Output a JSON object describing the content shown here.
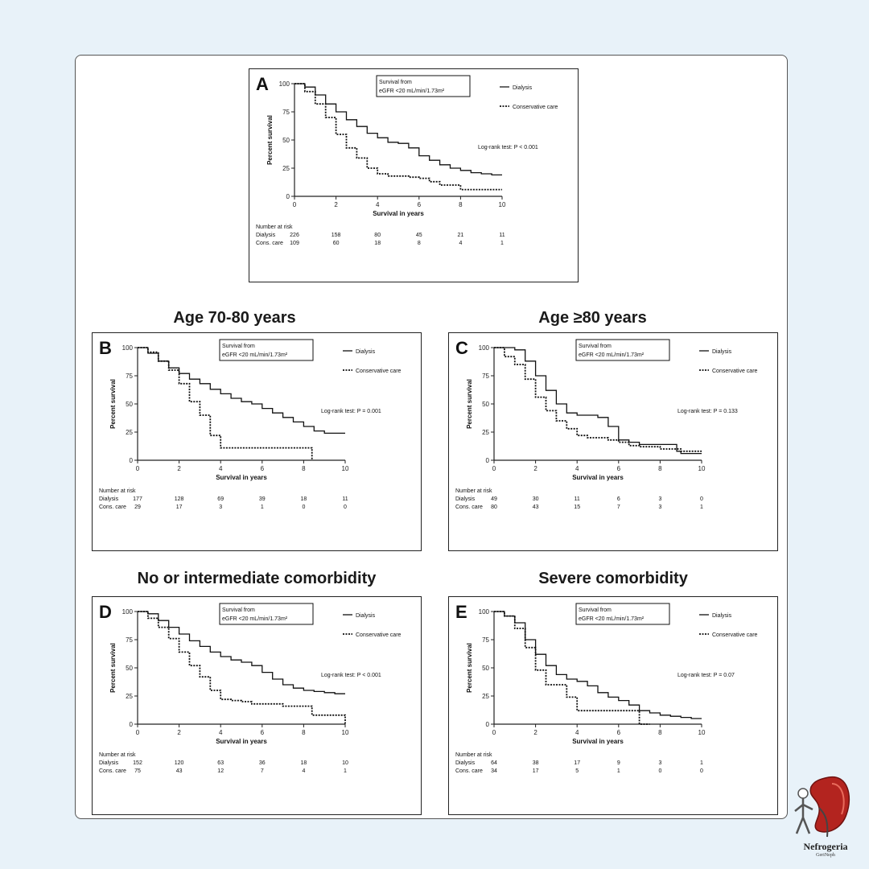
{
  "titles": {
    "age_70_80": "Age 70-80 years",
    "age_80": "Age ≥80 years",
    "no_comorbidity": "No or intermediate comorbidity",
    "severe_comorbidity": "Severe comorbidity"
  },
  "brand": {
    "name": "Nefrogeria",
    "sub": "GeriNeph"
  },
  "chart_data": [
    {
      "panel": "A",
      "type": "line",
      "ylabel": "Percent survival",
      "xlabel": "Survival in years",
      "xlim": [
        0,
        10
      ],
      "ylim": [
        0,
        100
      ],
      "xticks": [
        "0",
        "2",
        "4",
        "6",
        "8",
        "10"
      ],
      "yticks": [
        "0",
        "25",
        "50",
        "75",
        "100"
      ],
      "box_lines": [
        "Survival from",
        "eGFR <20 mL/min/1.73m²"
      ],
      "pvalue": "Log-rank test: P < 0.001",
      "series": [
        {
          "name": "Dialysis",
          "style": "solid",
          "x": [
            0,
            0.5,
            1,
            1.5,
            2,
            2.5,
            3,
            3.5,
            4,
            4.5,
            5,
            5.5,
            6,
            6.5,
            7,
            7.5,
            8,
            8.5,
            9,
            9.5,
            10
          ],
          "y": [
            100,
            97,
            90,
            82,
            75,
            68,
            62,
            56,
            52,
            48,
            47,
            43,
            36,
            32,
            28,
            25,
            23,
            21,
            20,
            19,
            19
          ]
        },
        {
          "name": "Conservative care",
          "style": "dashed",
          "x": [
            0,
            0.5,
            1,
            1.5,
            2,
            2.5,
            3,
            3.5,
            4,
            4.5,
            5,
            5.5,
            6,
            6.5,
            7,
            7.5,
            8,
            8.5,
            9,
            9.5,
            10
          ],
          "y": [
            100,
            93,
            82,
            70,
            55,
            43,
            34,
            25,
            20,
            18,
            18,
            17,
            16,
            13,
            10,
            10,
            6,
            6,
            6,
            6,
            6
          ]
        }
      ],
      "risk_header": "Number at risk",
      "risk_rows": [
        {
          "label": "Dialysis",
          "values": [
            "226",
            "158",
            "80",
            "45",
            "21",
            "11"
          ]
        },
        {
          "label": "Cons. care",
          "values": [
            "109",
            "60",
            "18",
            "8",
            "4",
            "1"
          ]
        }
      ]
    },
    {
      "panel": "B",
      "type": "line",
      "ylabel": "Percent survival",
      "xlabel": "Survival in years",
      "xlim": [
        0,
        10
      ],
      "ylim": [
        0,
        100
      ],
      "xticks": [
        "0",
        "2",
        "4",
        "6",
        "8",
        "10"
      ],
      "yticks": [
        "0",
        "25",
        "50",
        "75",
        "100"
      ],
      "box_lines": [
        "Survival from",
        "eGFR <20 mL/min/1.73m²"
      ],
      "pvalue": "Log-rank test: P = 0.001",
      "series": [
        {
          "name": "Dialysis",
          "style": "solid",
          "x": [
            0,
            0.5,
            1,
            1.5,
            2,
            2.5,
            3,
            3.5,
            4,
            4.5,
            5,
            5.5,
            6,
            6.5,
            7,
            7.5,
            8,
            8.5,
            9,
            9.5,
            10
          ],
          "y": [
            100,
            95,
            88,
            82,
            77,
            72,
            68,
            63,
            59,
            55,
            52,
            50,
            46,
            42,
            38,
            34,
            30,
            26,
            24,
            24,
            24
          ]
        },
        {
          "name": "Conservative care",
          "style": "dashed",
          "x": [
            0,
            0.5,
            1,
            1.5,
            2,
            2.5,
            3,
            3.5,
            4,
            5,
            6,
            7,
            8,
            8.4,
            8.4
          ],
          "y": [
            100,
            96,
            88,
            80,
            68,
            52,
            40,
            22,
            11,
            11,
            11,
            11,
            11,
            11,
            0
          ]
        }
      ],
      "risk_header": "Number at risk",
      "risk_rows": [
        {
          "label": "Dialysis",
          "values": [
            "177",
            "128",
            "69",
            "39",
            "18",
            "11"
          ]
        },
        {
          "label": "Cons. care",
          "values": [
            "29",
            "17",
            "3",
            "1",
            "0",
            "0"
          ]
        }
      ]
    },
    {
      "panel": "C",
      "type": "line",
      "ylabel": "Percent survival",
      "xlabel": "Survival in years",
      "xlim": [
        0,
        10
      ],
      "ylim": [
        0,
        100
      ],
      "xticks": [
        "0",
        "2",
        "4",
        "6",
        "8",
        "10"
      ],
      "yticks": [
        "0",
        "25",
        "50",
        "75",
        "100"
      ],
      "box_lines": [
        "Survival from",
        "eGFR <20 mL/min/1.73m²"
      ],
      "pvalue": "Log-rank test: P = 0.133",
      "series": [
        {
          "name": "Dialysis",
          "style": "solid",
          "x": [
            0,
            0.5,
            1,
            1.5,
            2,
            2.5,
            3,
            3.5,
            4,
            4.5,
            5,
            5.5,
            6,
            6.5,
            7,
            7.5,
            8,
            8.5,
            8.8,
            9,
            10
          ],
          "y": [
            100,
            100,
            98,
            88,
            75,
            62,
            50,
            42,
            40,
            40,
            38,
            30,
            18,
            16,
            14,
            14,
            14,
            14,
            8,
            6,
            6
          ]
        },
        {
          "name": "Conservative care",
          "style": "dashed",
          "x": [
            0,
            0.5,
            1,
            1.5,
            2,
            2.5,
            3,
            3.5,
            4,
            4.5,
            5,
            5.5,
            6,
            6.5,
            7,
            8,
            8.5,
            9,
            9.5,
            10
          ],
          "y": [
            100,
            92,
            85,
            72,
            56,
            44,
            35,
            28,
            22,
            20,
            20,
            18,
            16,
            13,
            12,
            10,
            10,
            8,
            8,
            8
          ]
        }
      ],
      "risk_header": "Number at risk",
      "risk_rows": [
        {
          "label": "Dialysis",
          "values": [
            "49",
            "30",
            "11",
            "6",
            "3",
            "0"
          ]
        },
        {
          "label": "Cons. care",
          "values": [
            "80",
            "43",
            "15",
            "7",
            "3",
            "1"
          ]
        }
      ]
    },
    {
      "panel": "D",
      "type": "line",
      "ylabel": "Percent survival",
      "xlabel": "Survival in years",
      "xlim": [
        0,
        10
      ],
      "ylim": [
        0,
        100
      ],
      "xticks": [
        "0",
        "2",
        "4",
        "6",
        "8",
        "10"
      ],
      "yticks": [
        "0",
        "25",
        "50",
        "75",
        "100"
      ],
      "box_lines": [
        "Survival from",
        "eGFR <20 mL/min/1.73m²"
      ],
      "pvalue": "Log-rank test: P < 0.001",
      "series": [
        {
          "name": "Dialysis",
          "style": "solid",
          "x": [
            0,
            0.5,
            1,
            1.5,
            2,
            2.5,
            3,
            3.5,
            4,
            4.5,
            5,
            5.5,
            6,
            6.5,
            7,
            7.5,
            8,
            8.5,
            9,
            9.5,
            10
          ],
          "y": [
            100,
            98,
            92,
            86,
            80,
            74,
            69,
            64,
            60,
            57,
            55,
            52,
            46,
            40,
            35,
            32,
            30,
            29,
            28,
            27,
            27
          ]
        },
        {
          "name": "Conservative care",
          "style": "dashed",
          "x": [
            0,
            0.5,
            1,
            1.5,
            2,
            2.5,
            3,
            3.5,
            4,
            4.5,
            5,
            5.5,
            6,
            6.5,
            7,
            7.5,
            8,
            8.4,
            8.5,
            9,
            9.5,
            10
          ],
          "y": [
            100,
            94,
            86,
            76,
            64,
            52,
            42,
            30,
            22,
            21,
            20,
            18,
            18,
            18,
            16,
            16,
            16,
            8,
            8,
            8,
            8,
            0
          ]
        }
      ],
      "risk_header": "Number at risk",
      "risk_rows": [
        {
          "label": "Dialysis",
          "values": [
            "152",
            "120",
            "63",
            "36",
            "18",
            "10"
          ]
        },
        {
          "label": "Cons. care",
          "values": [
            "75",
            "43",
            "12",
            "7",
            "4",
            "1"
          ]
        }
      ]
    },
    {
      "panel": "E",
      "type": "line",
      "ylabel": "Percent survival",
      "xlabel": "Survival in years",
      "xlim": [
        0,
        10
      ],
      "ylim": [
        0,
        100
      ],
      "xticks": [
        "0",
        "2",
        "4",
        "6",
        "8",
        "10"
      ],
      "yticks": [
        "0",
        "25",
        "50",
        "75",
        "100"
      ],
      "box_lines": [
        "Survival from",
        "eGFR <20 mL/min/1.73m²"
      ],
      "pvalue": "Log-rank test: P = 0.07",
      "series": [
        {
          "name": "Dialysis",
          "style": "solid",
          "x": [
            0,
            0.5,
            1,
            1.5,
            2,
            2.5,
            3,
            3.5,
            4,
            4.5,
            5,
            5.5,
            6,
            6.5,
            7,
            7.5,
            8,
            8.5,
            9,
            9.5,
            10
          ],
          "y": [
            100,
            96,
            90,
            75,
            62,
            52,
            44,
            40,
            38,
            34,
            28,
            24,
            21,
            17,
            12,
            10,
            8,
            7,
            6,
            5,
            5
          ]
        },
        {
          "name": "Conservative care",
          "style": "dashed",
          "x": [
            0,
            0.5,
            1,
            1.5,
            2,
            2.5,
            3,
            3.5,
            4,
            5,
            6,
            7,
            7,
            7.5
          ],
          "y": [
            100,
            96,
            85,
            68,
            48,
            35,
            35,
            24,
            12,
            12,
            12,
            12,
            0,
            0
          ]
        }
      ],
      "risk_header": "Number at risk",
      "risk_rows": [
        {
          "label": "Dialysis",
          "values": [
            "64",
            "38",
            "17",
            "9",
            "3",
            "1"
          ]
        },
        {
          "label": "Cons. care",
          "values": [
            "34",
            "17",
            "5",
            "1",
            "0",
            "0"
          ]
        }
      ]
    }
  ]
}
